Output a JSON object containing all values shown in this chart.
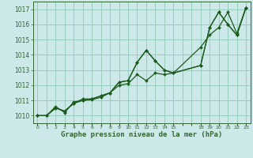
{
  "xlabel": "Graphe pression niveau de la mer (hPa)",
  "background_color": "#cce8e8",
  "grid_color": "#99ccbb",
  "line_color": "#1a5c1a",
  "spine_color": "#336633",
  "xlim": [
    -0.5,
    23.5
  ],
  "ylim": [
    1009.5,
    1017.5
  ],
  "yticks": [
    1010,
    1011,
    1012,
    1013,
    1014,
    1015,
    1016,
    1017
  ],
  "xtick_positions": [
    0,
    1,
    2,
    3,
    4,
    5,
    6,
    7,
    8,
    9,
    10,
    11,
    12,
    13,
    14,
    15,
    18,
    19,
    20,
    21,
    22,
    23
  ],
  "series": [
    {
      "x": [
        0,
        1,
        2,
        3,
        4,
        5,
        6,
        7,
        8,
        9,
        10,
        11,
        12,
        13,
        14,
        15,
        18,
        19,
        20,
        21,
        22,
        23
      ],
      "y": [
        1010.0,
        1010.0,
        1010.5,
        1010.3,
        1010.8,
        1011.0,
        1011.1,
        1011.3,
        1011.5,
        1012.2,
        1012.3,
        1013.5,
        1014.3,
        1013.6,
        1013.0,
        1012.8,
        1013.3,
        1015.8,
        1016.8,
        1016.0,
        1015.3,
        1017.1
      ]
    },
    {
      "x": [
        0,
        1,
        2,
        3,
        4,
        5,
        6,
        7,
        8,
        9,
        10,
        11,
        12,
        13,
        14,
        15,
        18,
        19,
        20,
        21,
        22,
        23
      ],
      "y": [
        1010.0,
        1010.0,
        1010.6,
        1010.2,
        1010.9,
        1011.0,
        1011.05,
        1011.2,
        1011.5,
        1012.0,
        1012.1,
        1012.7,
        1012.3,
        1012.8,
        1012.7,
        1012.8,
        1013.3,
        1015.8,
        1016.8,
        1016.0,
        1015.3,
        1017.1
      ]
    },
    {
      "x": [
        0,
        1,
        2,
        3,
        4,
        5,
        6,
        7,
        8,
        9,
        10,
        11,
        12,
        13,
        14,
        15,
        18,
        19,
        20,
        21,
        22,
        23
      ],
      "y": [
        1010.0,
        1010.0,
        1010.5,
        1010.3,
        1010.8,
        1011.1,
        1011.1,
        1011.3,
        1011.5,
        1012.2,
        1012.3,
        1013.5,
        1014.3,
        1013.6,
        1013.0,
        1012.8,
        1014.5,
        1015.3,
        1015.8,
        1016.8,
        1015.4,
        1017.1
      ]
    }
  ]
}
